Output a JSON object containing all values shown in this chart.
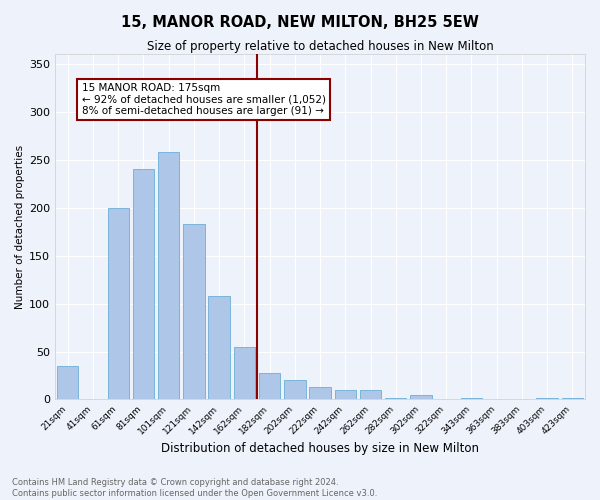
{
  "title": "15, MANOR ROAD, NEW MILTON, BH25 5EW",
  "subtitle": "Size of property relative to detached houses in New Milton",
  "xlabel": "Distribution of detached houses by size in New Milton",
  "ylabel": "Number of detached properties",
  "categories": [
    "21sqm",
    "41sqm",
    "61sqm",
    "81sqm",
    "101sqm",
    "121sqm",
    "142sqm",
    "162sqm",
    "182sqm",
    "202sqm",
    "222sqm",
    "242sqm",
    "262sqm",
    "282sqm",
    "302sqm",
    "322sqm",
    "343sqm",
    "363sqm",
    "383sqm",
    "403sqm",
    "423sqm"
  ],
  "values": [
    35,
    0,
    200,
    240,
    258,
    183,
    108,
    55,
    28,
    20,
    13,
    10,
    10,
    2,
    5,
    0,
    2,
    1,
    0,
    2,
    2
  ],
  "bar_color": "#aec6e8",
  "bar_edge_color": "#6baed6",
  "property_label": "15 MANOR ROAD: 175sqm",
  "annotation_line1": "← 92% of detached houses are smaller (1,052)",
  "annotation_line2": "8% of semi-detached houses are larger (91) →",
  "vline_color": "#8b0000",
  "vline_x_index": 7.5,
  "annotation_box_color": "#ffffff",
  "annotation_box_edge_color": "#8b0000",
  "footnote1": "Contains HM Land Registry data © Crown copyright and database right 2024.",
  "footnote2": "Contains public sector information licensed under the Open Government Licence v3.0.",
  "background_color": "#eef2fa",
  "ylim": [
    0,
    360
  ],
  "yticks": [
    0,
    50,
    100,
    150,
    200,
    250,
    300,
    350
  ]
}
